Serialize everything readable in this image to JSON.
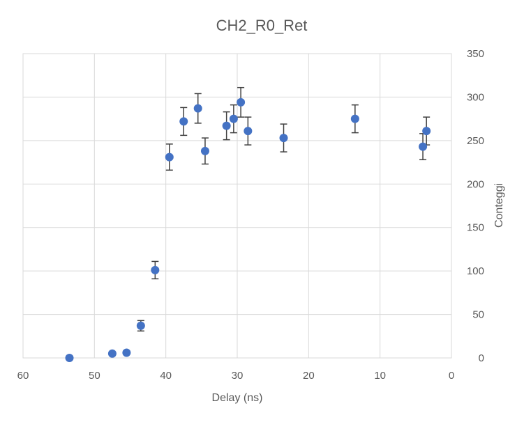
{
  "chart_data": {
    "type": "scatter",
    "title": "CH2_R0_Ret",
    "xlabel": "Delay (ns)",
    "ylabel": "Conteggi",
    "xlim": [
      60,
      0
    ],
    "ylim": [
      0,
      350
    ],
    "x_ticks": [
      60,
      50,
      40,
      30,
      20,
      10,
      0
    ],
    "y_ticks": [
      0,
      50,
      100,
      150,
      200,
      250,
      300,
      350
    ],
    "x_reversed": true,
    "y_axis_position": "right",
    "grid": true,
    "legend": "none",
    "marker_color": "#4472c4",
    "error_bar_color": "#404040",
    "points": [
      {
        "x": 53.5,
        "y": 0,
        "err": null
      },
      {
        "x": 47.5,
        "y": 5,
        "err": null
      },
      {
        "x": 45.5,
        "y": 6,
        "err": null
      },
      {
        "x": 43.5,
        "y": 37,
        "err": 6
      },
      {
        "x": 41.5,
        "y": 101,
        "err": 10
      },
      {
        "x": 39.5,
        "y": 231,
        "err": 15
      },
      {
        "x": 37.5,
        "y": 272,
        "err": 16
      },
      {
        "x": 35.5,
        "y": 287,
        "err": 17
      },
      {
        "x": 34.5,
        "y": 238,
        "err": 15
      },
      {
        "x": 31.5,
        "y": 267,
        "err": 16
      },
      {
        "x": 30.5,
        "y": 275,
        "err": 16
      },
      {
        "x": 29.5,
        "y": 294,
        "err": 17
      },
      {
        "x": 28.5,
        "y": 261,
        "err": 16
      },
      {
        "x": 23.5,
        "y": 253,
        "err": 16
      },
      {
        "x": 13.5,
        "y": 275,
        "err": 16
      },
      {
        "x": 4,
        "y": 243,
        "err": 15
      },
      {
        "x": 3.5,
        "y": 261,
        "err": 16
      }
    ]
  }
}
